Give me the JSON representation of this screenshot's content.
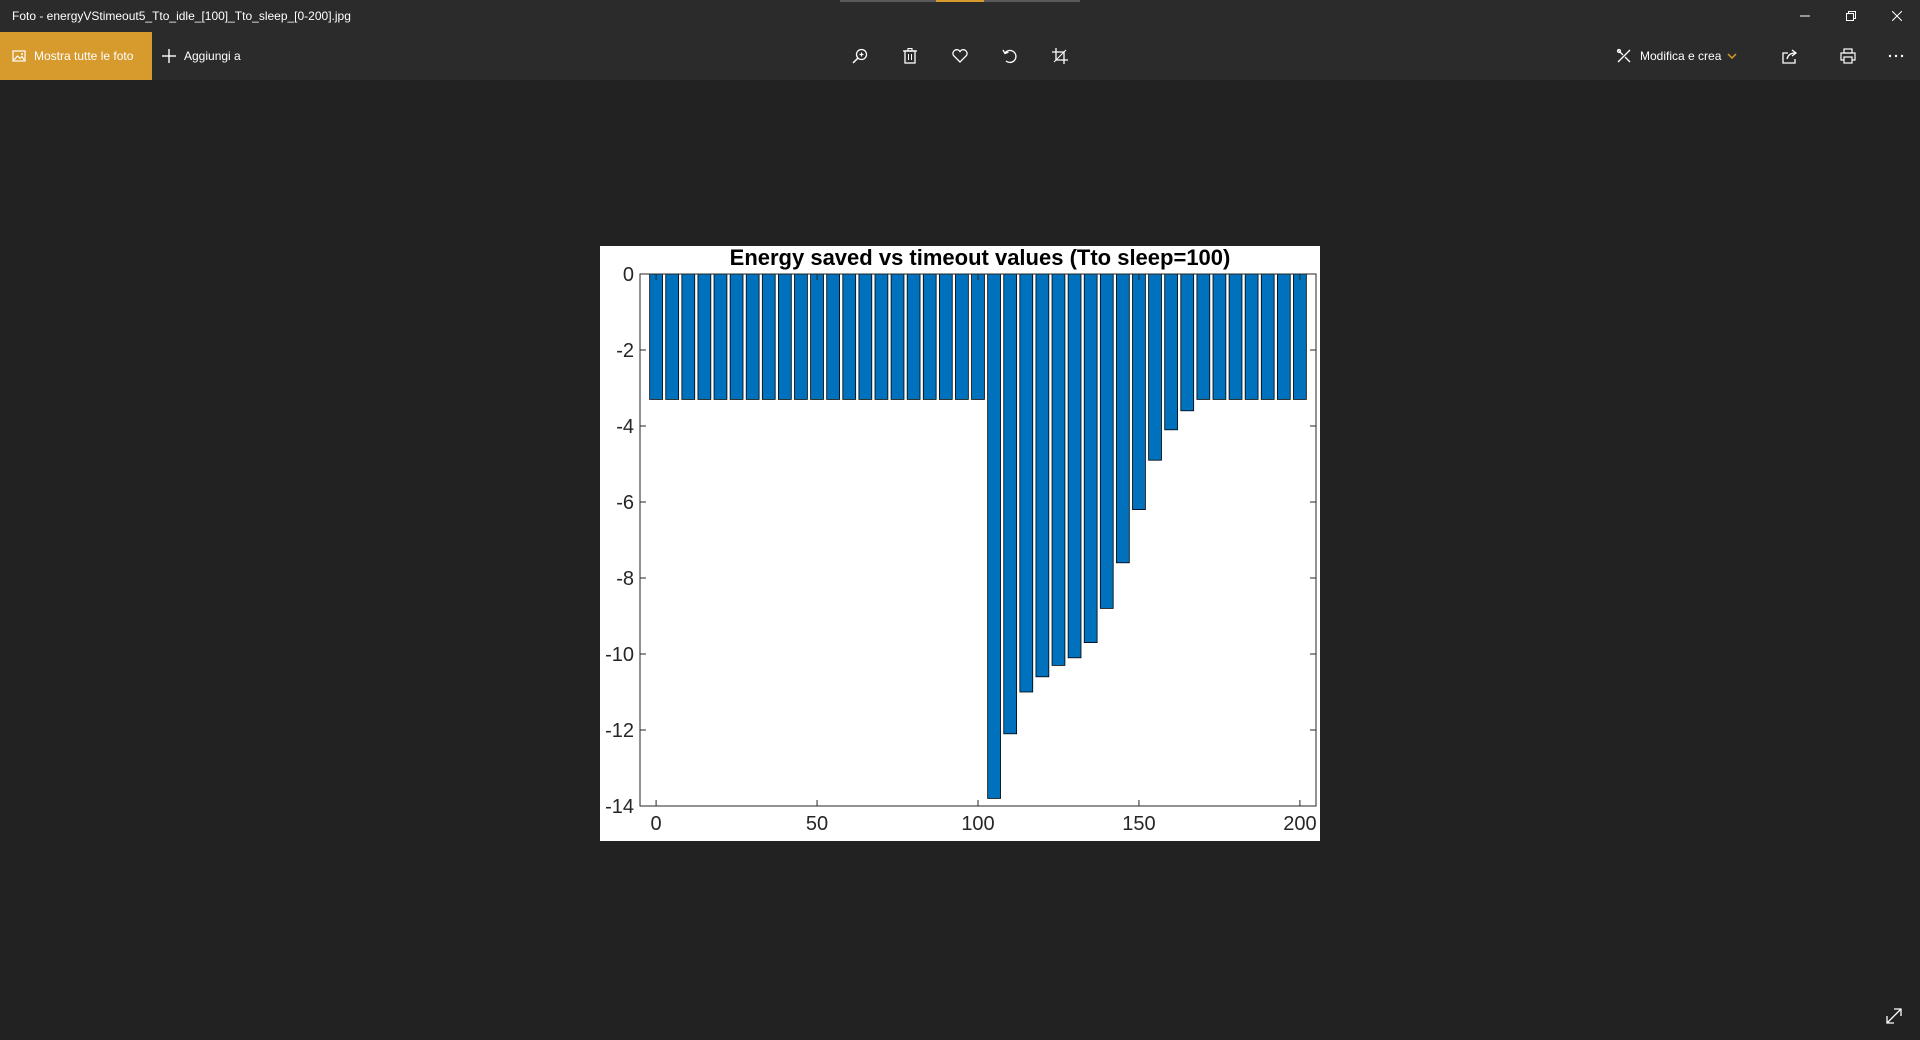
{
  "window": {
    "title": "Foto - energyVStimeout5_Tto_idle_[100]_Tto_sleep_[0-200].jpg",
    "controls": [
      "minimize-icon",
      "restore-icon",
      "close-icon"
    ]
  },
  "toolbar": {
    "show_all_label": "Mostra tutte le foto",
    "add_to_label": "Aggiungi a",
    "edit_create_label": "Modifica e crea",
    "accent": "#d69a2d",
    "icons": [
      "zoom-icon",
      "delete-icon",
      "favorite-icon",
      "rotate-icon",
      "crop-icon",
      "share-icon",
      "print-icon",
      "more-icon"
    ]
  },
  "chart_data": {
    "type": "bar",
    "title": "Energy saved vs timeout values (Tto sleep=100)",
    "xlabel": "",
    "ylabel": "",
    "xlim": [
      -5,
      205
    ],
    "ylim": [
      -14,
      0
    ],
    "xticks": [
      "0",
      "50",
      "100",
      "150",
      "200"
    ],
    "yticks": [
      "0",
      "-2",
      "-4",
      "-6",
      "-8",
      "-10",
      "-12",
      "-14"
    ],
    "x": [
      0,
      5,
      10,
      15,
      20,
      25,
      30,
      35,
      40,
      45,
      50,
      55,
      60,
      65,
      70,
      75,
      80,
      85,
      90,
      95,
      100,
      105,
      110,
      115,
      120,
      125,
      130,
      135,
      140,
      145,
      150,
      155,
      160,
      165,
      170,
      175,
      180,
      185,
      190,
      195,
      200
    ],
    "values": [
      -3.3,
      -3.3,
      -3.3,
      -3.3,
      -3.3,
      -3.3,
      -3.3,
      -3.3,
      -3.3,
      -3.3,
      -3.3,
      -3.3,
      -3.3,
      -3.3,
      -3.3,
      -3.3,
      -3.3,
      -3.3,
      -3.3,
      -3.3,
      -3.3,
      -13.8,
      -12.1,
      -11.0,
      -10.6,
      -10.3,
      -10.1,
      -9.7,
      -8.8,
      -7.6,
      -6.2,
      -4.9,
      -4.1,
      -3.6,
      -3.3,
      -3.3,
      -3.3,
      -3.3,
      -3.3,
      -3.3,
      -3.3
    ],
    "bar_color": "#0072bd",
    "grid": false
  }
}
